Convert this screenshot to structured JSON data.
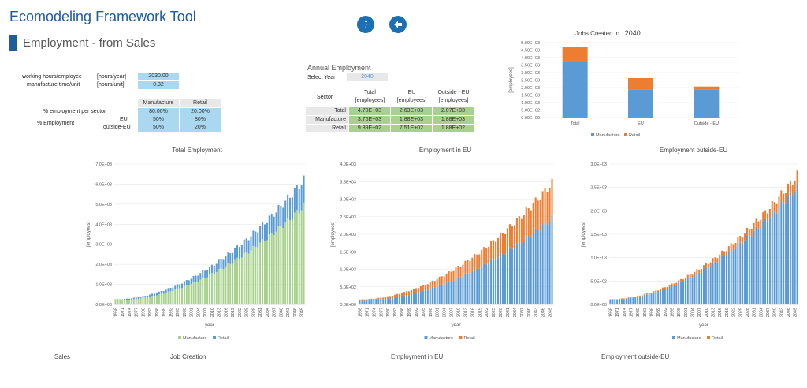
{
  "app": {
    "title": "Ecomodeling Framework Tool",
    "section": "Employment - from Sales"
  },
  "inputs": {
    "working_hours_label": "working hours/employee",
    "working_hours_unit": "[hours/year]",
    "working_hours_value": "2030.00",
    "manufacture_time_label": "manufacture time/unit",
    "manufacture_time_unit": "[hours/unit]",
    "manufacture_time_value": "0.32",
    "col_manufacture": "Manufacture",
    "col_retail": "Retail",
    "emp_per_sector_label": "%  employment per sector",
    "emp_per_sector_values": [
      "80.00%",
      "20.00%"
    ],
    "pct_employment_label": "% Employment",
    "eu_label": "EU",
    "eu_values": [
      "50%",
      "80%"
    ],
    "outside_label": "outside-EU",
    "outside_values": [
      "50%",
      "20%"
    ]
  },
  "annual": {
    "title": "Annual Employment",
    "select_year_label": "Select Year",
    "select_year_value": "2040",
    "sector_header": "Sector",
    "headers": [
      "Total\n[employees]",
      "EU\n[employees]",
      "Outside - EU\n[employees]"
    ],
    "headers_line1": [
      "Total",
      "EU",
      "Outside - EU"
    ],
    "headers_line2": [
      "[employees]",
      "[employees]",
      "[employees]"
    ],
    "rows": [
      {
        "label": "Total",
        "values": [
          "4.70E+03",
          "2.63E+03",
          "2.07E+03"
        ]
      },
      {
        "label": "Manufacture",
        "values": [
          "3.76E+03",
          "1.88E+03",
          "1.88E+03"
        ]
      },
      {
        "label": "Retail",
        "values": [
          "9.39E+02",
          "7.51E+02",
          "1.88E+02"
        ]
      }
    ]
  },
  "colors": {
    "blue": "#5b9bd5",
    "orange": "#ed7d31",
    "green": "#a9d18e",
    "title_blue": "#1f5c99"
  },
  "tabs": [
    "Sales",
    "Job Creation",
    "Employment in EU",
    "Employment outside-EU"
  ],
  "chart_data": [
    {
      "type": "bar",
      "title": "Jobs Created in",
      "title_year": "2040",
      "ylabel": "[employees]",
      "categories": [
        "Total",
        "EU",
        "Outside - EU"
      ],
      "series": [
        {
          "name": "Manufacture",
          "values": [
            3760,
            1880,
            1880
          ]
        },
        {
          "name": "Retail",
          "values": [
            939,
            751,
            188
          ]
        }
      ],
      "ylim": [
        0,
        5000
      ],
      "yticks": [
        "0.00E+00",
        "5.00E+02",
        "1.00E+03",
        "1.50E+03",
        "2.00E+03",
        "2.50E+03",
        "3.00E+03",
        "3.50E+03",
        "4.00E+03",
        "4.50E+03",
        "5.00E+03"
      ],
      "legend": "bottom"
    },
    {
      "type": "bar",
      "title": "Total Employment",
      "ylabel": "[employees]",
      "xlabel": "year",
      "x_start": 1968,
      "x_end": 2050,
      "xticks": [
        "1968",
        "1971",
        "1974",
        "1977",
        "1980",
        "1983",
        "1986",
        "1989",
        "1992",
        "1995",
        "1998",
        "2001",
        "2004",
        "2007",
        "2010",
        "2013",
        "2016",
        "2019",
        "2022",
        "2025",
        "2028",
        "2031",
        "2034",
        "2037",
        "2040",
        "2043",
        "2046",
        "2049"
      ],
      "series": [
        {
          "name": "Manufacture",
          "start": 200,
          "end": 4900
        },
        {
          "name": "Retail",
          "start": 50,
          "end": 1300
        }
      ],
      "ylim": [
        0,
        7000
      ],
      "yticks": [
        "0.0E+00",
        "1.0E+03",
        "2.0E+03",
        "3.0E+03",
        "4.0E+03",
        "5.0E+03",
        "6.0E+03",
        "7.0E+03"
      ],
      "legend": "bottom",
      "colors": [
        "#a9d18e",
        "#5b9bd5"
      ]
    },
    {
      "type": "bar",
      "title": "Employment in EU",
      "ylabel": "[employees]",
      "xlabel": "year",
      "x_start": 1968,
      "x_end": 2050,
      "xticks": [
        "1968",
        "1971",
        "1974",
        "1977",
        "1980",
        "1983",
        "1986",
        "1989",
        "1992",
        "1995",
        "1998",
        "2001",
        "2004",
        "2007",
        "2010",
        "2013",
        "2016",
        "2019",
        "2022",
        "2025",
        "2028",
        "2031",
        "2034",
        "2037",
        "2040",
        "2043",
        "2046",
        "2049"
      ],
      "series": [
        {
          "name": "Manufacture",
          "start": 100,
          "end": 2450
        },
        {
          "name": "Retail",
          "start": 40,
          "end": 1000
        }
      ],
      "ylim": [
        0,
        4000
      ],
      "yticks": [
        "0.0E+00",
        "5.0E+02",
        "1.0E+03",
        "1.5E+03",
        "2.0E+03",
        "2.5E+03",
        "3.0E+03",
        "3.5E+03",
        "4.0E+03"
      ],
      "legend": "bottom",
      "colors": [
        "#5b9bd5",
        "#ed7d31"
      ]
    },
    {
      "type": "bar",
      "title": "Employment outside-EU",
      "ylabel": "[employees]",
      "xlabel": "year",
      "x_start": 1968,
      "x_end": 2050,
      "xticks": [
        "1968",
        "1971",
        "1974",
        "1977",
        "1980",
        "1983",
        "1986",
        "1989",
        "1992",
        "1995",
        "1998",
        "2001",
        "2004",
        "2007",
        "2010",
        "2013",
        "2016",
        "2019",
        "2022",
        "2025",
        "2028",
        "2031",
        "2034",
        "2037",
        "2040",
        "2043",
        "2046",
        "2049"
      ],
      "series": [
        {
          "name": "Manufacture",
          "start": 100,
          "end": 2500
        },
        {
          "name": "Retail",
          "start": 10,
          "end": 260
        }
      ],
      "ylim": [
        0,
        3000
      ],
      "yticks": [
        "0.0E+00",
        "5.0E+02",
        "1.0E+03",
        "1.5E+03",
        "2.0E+03",
        "2.5E+03",
        "3.0E+03"
      ],
      "legend": "bottom",
      "colors": [
        "#5b9bd5",
        "#ed7d31"
      ]
    }
  ]
}
